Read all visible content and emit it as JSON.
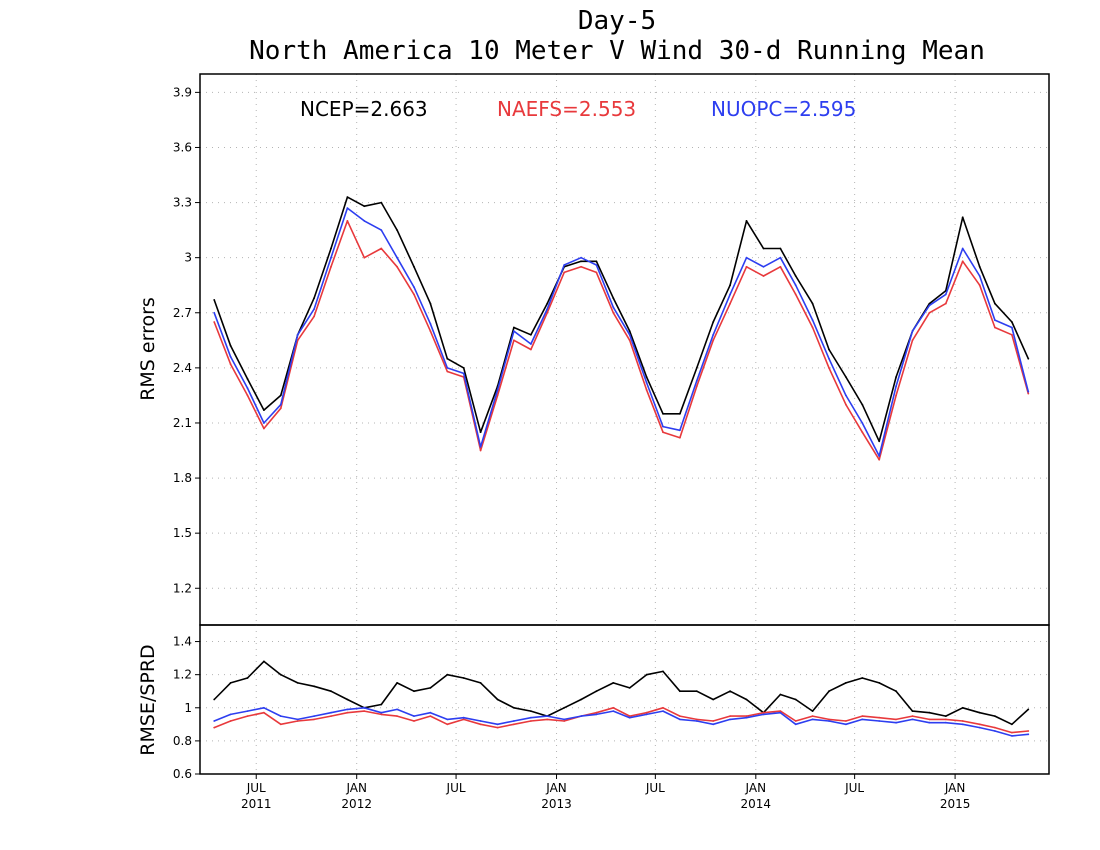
{
  "chart_data": [
    {
      "type": "line",
      "title": "Day-5",
      "subtitle": "North America 10 Meter V Wind 30-d Running Mean",
      "xlabel": "",
      "ylabel": "RMS errors",
      "ylim": [
        1.0,
        4.0
      ],
      "yticks": [
        "1.2",
        "1.5",
        "1.8",
        "2.1",
        "2.4",
        "2.7",
        "3",
        "3.3",
        "3.6",
        "3.9"
      ],
      "grid": true,
      "legend_position": "top",
      "x": [
        "2011-04-15",
        "2011-05-15",
        "2011-06-15",
        "2011-07-15",
        "2011-08-15",
        "2011-09-15",
        "2011-10-15",
        "2011-11-15",
        "2011-12-15",
        "2012-01-15",
        "2012-02-15",
        "2012-03-15",
        "2012-04-15",
        "2012-05-15",
        "2012-06-15",
        "2012-07-15",
        "2012-08-15",
        "2012-09-15",
        "2012-10-15",
        "2012-11-15",
        "2012-12-15",
        "2013-01-15",
        "2013-02-15",
        "2013-03-15",
        "2013-04-15",
        "2013-05-15",
        "2013-06-15",
        "2013-07-15",
        "2013-08-15",
        "2013-09-15",
        "2013-10-15",
        "2013-11-15",
        "2013-12-15",
        "2014-01-15",
        "2014-02-15",
        "2014-03-15",
        "2014-04-15",
        "2014-05-15",
        "2014-06-15",
        "2014-07-15",
        "2014-08-15",
        "2014-09-15",
        "2014-10-15",
        "2014-11-15",
        "2014-12-15",
        "2015-01-15",
        "2015-02-15",
        "2015-03-15",
        "2015-04-15",
        "2015-05-15"
      ],
      "series": [
        {
          "name": "NCEP",
          "color": "#000000",
          "mean_label": "NCEP=2.663",
          "values": [
            2.77,
            2.52,
            2.34,
            2.17,
            2.25,
            2.58,
            2.78,
            3.05,
            3.33,
            3.28,
            3.3,
            3.15,
            2.95,
            2.75,
            2.45,
            2.4,
            2.05,
            2.3,
            2.62,
            2.58,
            2.75,
            2.95,
            2.98,
            2.98,
            2.78,
            2.6,
            2.35,
            2.15,
            2.15,
            2.4,
            2.65,
            2.85,
            3.2,
            3.05,
            3.05,
            2.9,
            2.75,
            2.5,
            2.35,
            2.2,
            2.0,
            2.35,
            2.6,
            2.75,
            2.82,
            3.22,
            2.95,
            2.75,
            2.65,
            2.45
          ]
        },
        {
          "name": "NAEFS",
          "color": "#e8393c",
          "mean_label": "NAEFS=2.553",
          "values": [
            2.65,
            2.42,
            2.25,
            2.07,
            2.18,
            2.55,
            2.68,
            2.95,
            3.2,
            3.0,
            3.05,
            2.95,
            2.8,
            2.6,
            2.38,
            2.35,
            1.95,
            2.25,
            2.55,
            2.5,
            2.7,
            2.92,
            2.95,
            2.92,
            2.7,
            2.55,
            2.28,
            2.05,
            2.02,
            2.3,
            2.55,
            2.75,
            2.95,
            2.9,
            2.95,
            2.8,
            2.62,
            2.4,
            2.2,
            2.05,
            1.9,
            2.25,
            2.55,
            2.7,
            2.75,
            2.98,
            2.85,
            2.62,
            2.58,
            2.26
          ]
        },
        {
          "name": "NUOPC",
          "color": "#2d3ef0",
          "mean_label": "NUOPC=2.595",
          "values": [
            2.7,
            2.46,
            2.29,
            2.1,
            2.2,
            2.58,
            2.72,
            3.0,
            3.27,
            3.2,
            3.15,
            3.0,
            2.84,
            2.64,
            2.4,
            2.37,
            1.97,
            2.28,
            2.6,
            2.53,
            2.72,
            2.96,
            3.0,
            2.96,
            2.73,
            2.58,
            2.32,
            2.08,
            2.06,
            2.33,
            2.58,
            2.8,
            3.0,
            2.95,
            3.0,
            2.85,
            2.66,
            2.45,
            2.25,
            2.1,
            1.92,
            2.3,
            2.6,
            2.74,
            2.8,
            3.05,
            2.9,
            2.66,
            2.62,
            2.27
          ]
        }
      ]
    },
    {
      "type": "line",
      "title": "",
      "ylabel": "RMSE/SPRD",
      "ylim": [
        0.6,
        1.5
      ],
      "yticks": [
        "0.6",
        "0.8",
        "1",
        "1.2",
        "1.4"
      ],
      "grid": true,
      "x_tick_labels": [
        {
          "month": "JUL",
          "year": "2011",
          "date": "2011-07-01"
        },
        {
          "month": "JAN",
          "year": "2012",
          "date": "2012-01-01"
        },
        {
          "month": "JUL",
          "year": "",
          "date": "2012-07-01"
        },
        {
          "month": "JAN",
          "year": "2013",
          "date": "2013-01-01"
        },
        {
          "month": "JUL",
          "year": "",
          "date": "2013-07-01"
        },
        {
          "month": "JAN",
          "year": "2014",
          "date": "2014-01-01"
        },
        {
          "month": "JUL",
          "year": "",
          "date": "2014-07-01"
        },
        {
          "month": "JAN",
          "year": "2015",
          "date": "2015-01-01"
        }
      ],
      "x": [
        "2011-04-15",
        "2011-05-15",
        "2011-06-15",
        "2011-07-15",
        "2011-08-15",
        "2011-09-15",
        "2011-10-15",
        "2011-11-15",
        "2011-12-15",
        "2012-01-15",
        "2012-02-15",
        "2012-03-15",
        "2012-04-15",
        "2012-05-15",
        "2012-06-15",
        "2012-07-15",
        "2012-08-15",
        "2012-09-15",
        "2012-10-15",
        "2012-11-15",
        "2012-12-15",
        "2013-01-15",
        "2013-02-15",
        "2013-03-15",
        "2013-04-15",
        "2013-05-15",
        "2013-06-15",
        "2013-07-15",
        "2013-08-15",
        "2013-09-15",
        "2013-10-15",
        "2013-11-15",
        "2013-12-15",
        "2014-01-15",
        "2014-02-15",
        "2014-03-15",
        "2014-04-15",
        "2014-05-15",
        "2014-06-15",
        "2014-07-15",
        "2014-08-15",
        "2014-09-15",
        "2014-10-15",
        "2014-11-15",
        "2014-12-15",
        "2015-01-15",
        "2015-02-15",
        "2015-03-15",
        "2015-04-15",
        "2015-05-15"
      ],
      "series": [
        {
          "name": "NCEP",
          "color": "#000000",
          "values": [
            1.05,
            1.15,
            1.18,
            1.28,
            1.2,
            1.15,
            1.13,
            1.1,
            1.05,
            1.0,
            1.02,
            1.15,
            1.1,
            1.12,
            1.2,
            1.18,
            1.15,
            1.05,
            1.0,
            0.98,
            0.95,
            1.0,
            1.05,
            1.1,
            1.15,
            1.12,
            1.2,
            1.22,
            1.1,
            1.1,
            1.05,
            1.1,
            1.05,
            0.97,
            1.08,
            1.05,
            0.98,
            1.1,
            1.15,
            1.18,
            1.15,
            1.1,
            0.98,
            0.97,
            0.95,
            1.0,
            0.97,
            0.95,
            0.9,
            0.99
          ]
        },
        {
          "name": "NAEFS",
          "color": "#e8393c",
          "values": [
            0.88,
            0.92,
            0.95,
            0.97,
            0.9,
            0.92,
            0.93,
            0.95,
            0.97,
            0.98,
            0.96,
            0.95,
            0.92,
            0.95,
            0.9,
            0.93,
            0.9,
            0.88,
            0.9,
            0.92,
            0.93,
            0.92,
            0.95,
            0.97,
            1.0,
            0.95,
            0.97,
            1.0,
            0.95,
            0.93,
            0.92,
            0.95,
            0.95,
            0.97,
            0.98,
            0.92,
            0.95,
            0.93,
            0.92,
            0.95,
            0.94,
            0.93,
            0.95,
            0.93,
            0.93,
            0.92,
            0.9,
            0.88,
            0.85,
            0.86
          ]
        },
        {
          "name": "NUOPC",
          "color": "#2d3ef0",
          "values": [
            0.92,
            0.96,
            0.98,
            1.0,
            0.95,
            0.93,
            0.95,
            0.97,
            0.99,
            1.0,
            0.97,
            0.99,
            0.95,
            0.97,
            0.93,
            0.94,
            0.92,
            0.9,
            0.92,
            0.94,
            0.95,
            0.93,
            0.95,
            0.96,
            0.98,
            0.94,
            0.96,
            0.98,
            0.93,
            0.92,
            0.9,
            0.93,
            0.94,
            0.96,
            0.97,
            0.9,
            0.93,
            0.92,
            0.9,
            0.93,
            0.92,
            0.91,
            0.93,
            0.91,
            0.91,
            0.9,
            0.88,
            0.86,
            0.83,
            0.84
          ]
        }
      ]
    }
  ]
}
